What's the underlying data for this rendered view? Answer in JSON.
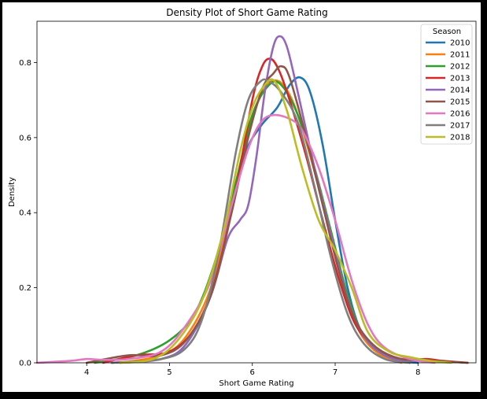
{
  "chart_data": {
    "type": "line",
    "title": "Density Plot of Short Game Rating",
    "xlabel": "Short Game Rating",
    "ylabel": "Density",
    "xlim": [
      3.4,
      8.7
    ],
    "ylim": [
      0,
      0.91
    ],
    "x_ticks": [
      4,
      5,
      6,
      7,
      8
    ],
    "x_tick_labels": [
      "4",
      "5",
      "6",
      "7",
      "8"
    ],
    "y_ticks": [
      0.0,
      0.2,
      0.4,
      0.6,
      0.8
    ],
    "y_tick_labels": [
      "0.0",
      "0.2",
      "0.4",
      "0.6",
      "0.8"
    ],
    "grid": false,
    "legend": {
      "title": "Season",
      "placement": "top-right"
    },
    "series": [
      {
        "name": "2010",
        "color": "#1f77b4",
        "points": [
          [
            4.3,
            0
          ],
          [
            4.9,
            0.01
          ],
          [
            5.2,
            0.05
          ],
          [
            5.5,
            0.18
          ],
          [
            5.7,
            0.36
          ],
          [
            5.9,
            0.55
          ],
          [
            6.1,
            0.63
          ],
          [
            6.3,
            0.68
          ],
          [
            6.45,
            0.74
          ],
          [
            6.58,
            0.76
          ],
          [
            6.7,
            0.72
          ],
          [
            6.85,
            0.58
          ],
          [
            7.0,
            0.38
          ],
          [
            7.15,
            0.2
          ],
          [
            7.3,
            0.09
          ],
          [
            7.5,
            0.03
          ],
          [
            7.8,
            0.005
          ],
          [
            8.0,
            0
          ]
        ]
      },
      {
        "name": "2011",
        "color": "#ff7f0e",
        "points": [
          [
            4.4,
            0
          ],
          [
            4.9,
            0.02
          ],
          [
            5.2,
            0.07
          ],
          [
            5.5,
            0.2
          ],
          [
            5.75,
            0.42
          ],
          [
            5.95,
            0.62
          ],
          [
            6.15,
            0.73
          ],
          [
            6.32,
            0.75
          ],
          [
            6.5,
            0.69
          ],
          [
            6.7,
            0.55
          ],
          [
            6.9,
            0.38
          ],
          [
            7.1,
            0.2
          ],
          [
            7.3,
            0.08
          ],
          [
            7.55,
            0.02
          ],
          [
            7.8,
            0
          ]
        ]
      },
      {
        "name": "2012",
        "color": "#2ca02c",
        "points": [
          [
            4.1,
            0
          ],
          [
            4.6,
            0.02
          ],
          [
            5.0,
            0.06
          ],
          [
            5.3,
            0.13
          ],
          [
            5.55,
            0.27
          ],
          [
            5.8,
            0.48
          ],
          [
            6.0,
            0.66
          ],
          [
            6.2,
            0.74
          ],
          [
            6.35,
            0.74
          ],
          [
            6.55,
            0.66
          ],
          [
            6.75,
            0.52
          ],
          [
            6.95,
            0.35
          ],
          [
            7.15,
            0.18
          ],
          [
            7.35,
            0.07
          ],
          [
            7.6,
            0.02
          ],
          [
            7.9,
            0
          ]
        ]
      },
      {
        "name": "2013",
        "color": "#d62728",
        "points": [
          [
            4.2,
            0
          ],
          [
            4.6,
            0.02
          ],
          [
            5.0,
            0.03
          ],
          [
            5.3,
            0.09
          ],
          [
            5.55,
            0.22
          ],
          [
            5.8,
            0.46
          ],
          [
            6.0,
            0.7
          ],
          [
            6.12,
            0.79
          ],
          [
            6.22,
            0.81
          ],
          [
            6.32,
            0.78
          ],
          [
            6.45,
            0.7
          ],
          [
            6.65,
            0.55
          ],
          [
            6.85,
            0.38
          ],
          [
            7.05,
            0.22
          ],
          [
            7.25,
            0.1
          ],
          [
            7.5,
            0.04
          ],
          [
            7.8,
            0.01
          ],
          [
            8.1,
            0.01
          ],
          [
            8.3,
            0.005
          ],
          [
            8.6,
            0
          ]
        ]
      },
      {
        "name": "2014",
        "color": "#9467bd",
        "points": [
          [
            4.4,
            0
          ],
          [
            4.9,
            0.01
          ],
          [
            5.2,
            0.05
          ],
          [
            5.5,
            0.18
          ],
          [
            5.7,
            0.33
          ],
          [
            5.85,
            0.38
          ],
          [
            5.95,
            0.42
          ],
          [
            6.05,
            0.55
          ],
          [
            6.15,
            0.72
          ],
          [
            6.25,
            0.84
          ],
          [
            6.33,
            0.87
          ],
          [
            6.42,
            0.84
          ],
          [
            6.55,
            0.72
          ],
          [
            6.75,
            0.52
          ],
          [
            6.95,
            0.34
          ],
          [
            7.15,
            0.17
          ],
          [
            7.35,
            0.07
          ],
          [
            7.6,
            0.02
          ],
          [
            7.9,
            0
          ]
        ]
      },
      {
        "name": "2015",
        "color": "#8c564b",
        "points": [
          [
            4.0,
            0
          ],
          [
            4.5,
            0.02
          ],
          [
            4.9,
            0.02
          ],
          [
            5.2,
            0.06
          ],
          [
            5.5,
            0.18
          ],
          [
            5.75,
            0.4
          ],
          [
            5.95,
            0.6
          ],
          [
            6.12,
            0.73
          ],
          [
            6.25,
            0.77
          ],
          [
            6.35,
            0.79
          ],
          [
            6.45,
            0.76
          ],
          [
            6.65,
            0.6
          ],
          [
            6.85,
            0.42
          ],
          [
            7.05,
            0.24
          ],
          [
            7.25,
            0.11
          ],
          [
            7.5,
            0.04
          ],
          [
            7.8,
            0.01
          ],
          [
            8.2,
            0.005
          ],
          [
            8.6,
            0
          ]
        ]
      },
      {
        "name": "2016",
        "color": "#e377c2",
        "points": [
          [
            3.4,
            0
          ],
          [
            3.8,
            0.005
          ],
          [
            4.0,
            0.01
          ],
          [
            4.2,
            0.008
          ],
          [
            4.5,
            0.01
          ],
          [
            4.9,
            0.03
          ],
          [
            5.2,
            0.1
          ],
          [
            5.5,
            0.22
          ],
          [
            5.75,
            0.42
          ],
          [
            5.95,
            0.57
          ],
          [
            6.1,
            0.64
          ],
          [
            6.25,
            0.66
          ],
          [
            6.45,
            0.65
          ],
          [
            6.6,
            0.62
          ],
          [
            6.8,
            0.52
          ],
          [
            7.0,
            0.38
          ],
          [
            7.2,
            0.22
          ],
          [
            7.4,
            0.1
          ],
          [
            7.6,
            0.04
          ],
          [
            7.9,
            0.01
          ],
          [
            8.2,
            0
          ]
        ]
      },
      {
        "name": "2017",
        "color": "#7f7f7f",
        "points": [
          [
            4.3,
            0
          ],
          [
            4.9,
            0.01
          ],
          [
            5.2,
            0.04
          ],
          [
            5.4,
            0.12
          ],
          [
            5.6,
            0.3
          ],
          [
            5.8,
            0.56
          ],
          [
            5.95,
            0.7
          ],
          [
            6.1,
            0.75
          ],
          [
            6.2,
            0.75
          ],
          [
            6.35,
            0.72
          ],
          [
            6.55,
            0.64
          ],
          [
            6.75,
            0.47
          ],
          [
            6.95,
            0.28
          ],
          [
            7.15,
            0.13
          ],
          [
            7.35,
            0.05
          ],
          [
            7.6,
            0.01
          ],
          [
            7.9,
            0
          ]
        ]
      },
      {
        "name": "2018",
        "color": "#bcbd22",
        "points": [
          [
            4.4,
            0
          ],
          [
            4.8,
            0.01
          ],
          [
            5.1,
            0.06
          ],
          [
            5.4,
            0.17
          ],
          [
            5.65,
            0.35
          ],
          [
            5.85,
            0.56
          ],
          [
            6.0,
            0.68
          ],
          [
            6.15,
            0.74
          ],
          [
            6.27,
            0.75
          ],
          [
            6.42,
            0.67
          ],
          [
            6.6,
            0.52
          ],
          [
            6.8,
            0.38
          ],
          [
            7.0,
            0.3
          ],
          [
            7.2,
            0.2
          ],
          [
            7.4,
            0.08
          ],
          [
            7.65,
            0.03
          ],
          [
            7.9,
            0.015
          ],
          [
            8.15,
            0.005
          ],
          [
            8.4,
            0
          ]
        ]
      }
    ]
  }
}
